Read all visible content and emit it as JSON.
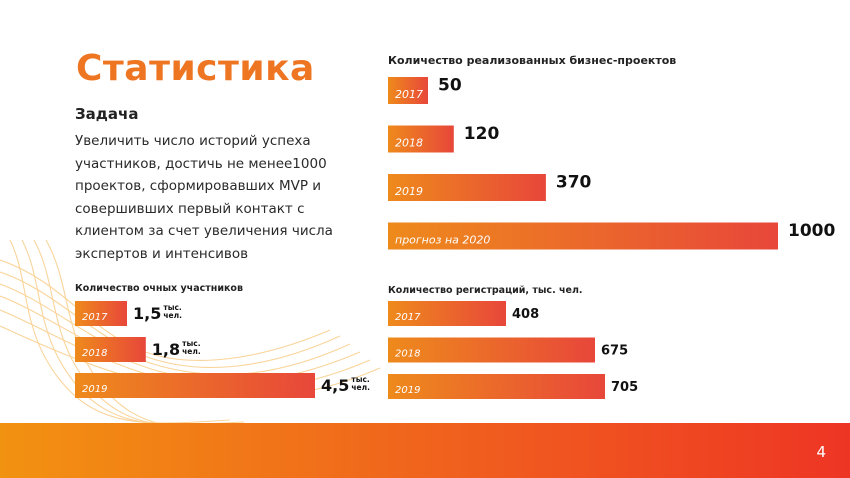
{
  "slide": {
    "title": "Статистика",
    "task_heading": "Задача",
    "task_text": "Увеличить число историй успеха участников, достичь не менее1000 проектов, сформировавших MVP и совершивших первый контакт с клиентом за счет увеличения числа экспертов и интенсивов",
    "page_number": "4"
  },
  "colors": {
    "accent": "#ee7623",
    "bar_gradient_start": "#ee8a1c",
    "bar_gradient_end": "#e8473a",
    "footer_start": "#f29211",
    "footer_end": "#ee3524"
  },
  "chart_data": [
    {
      "id": "projects",
      "type": "bar",
      "orientation": "horizontal",
      "title": "Количество реализованных бизнес-проектов",
      "categories": [
        "2017",
        "2018",
        "2019",
        "прогноз на 2020"
      ],
      "values": [
        50,
        120,
        370,
        1000
      ],
      "value_labels": [
        "50",
        "120",
        "370",
        "1000"
      ],
      "unit": "",
      "xlim": [
        0,
        1000
      ],
      "grid": false
    },
    {
      "id": "participants",
      "type": "bar",
      "orientation": "horizontal",
      "title": "Количество очных участников",
      "categories": [
        "2017",
        "2018",
        "2019"
      ],
      "values": [
        1.5,
        1.8,
        4.5
      ],
      "value_labels": [
        "1,5",
        "1,8",
        "4,5"
      ],
      "unit_line1": "тыс.",
      "unit_line2": "чел.",
      "xlim": [
        0,
        4.5
      ],
      "grid": false
    },
    {
      "id": "registrations",
      "type": "bar",
      "orientation": "horizontal",
      "title": "Количество регистраций, тыс. чел.",
      "categories": [
        "2017",
        "2018",
        "2019"
      ],
      "values": [
        408,
        675,
        705
      ],
      "value_labels": [
        "408",
        "675",
        "705"
      ],
      "unit": "",
      "xlim": [
        0,
        705
      ],
      "grid": false
    }
  ]
}
